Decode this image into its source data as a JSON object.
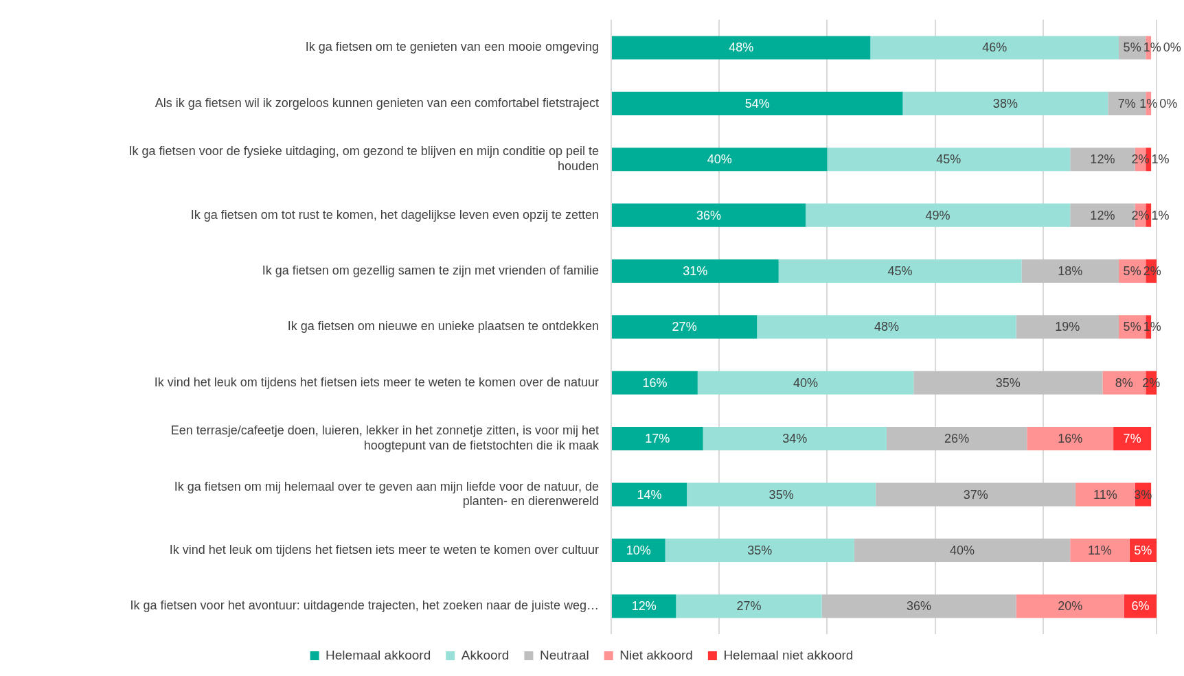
{
  "chart_data": {
    "type": "bar",
    "orientation": "horizontal",
    "stacked": true,
    "categories": [
      "Ik ga fietsen om te genieten van een mooie omgeving",
      "Als ik ga fietsen wil ik zorgeloos kunnen genieten van een comfortabel fietstraject",
      "Ik ga fietsen voor de fysieke uitdaging, om gezond te blijven en mijn conditie op peil te houden",
      "Ik ga fietsen om tot rust te komen, het dagelijkse leven even opzij te zetten",
      "Ik ga fietsen om gezellig samen te zijn met vrienden of familie",
      "Ik ga fietsen om nieuwe en unieke plaatsen te ontdekken",
      "Ik vind het leuk om tijdens het fietsen iets meer te weten te komen over de natuur",
      "Een terrasje/cafeetje doen, luieren, lekker in het zonnetje zitten, is voor mij het hoogtepunt van de fietstochten die ik maak",
      "Ik ga fietsen om mij helemaal over te geven aan mijn liefde voor de natuur, de planten- en dierenwereld",
      "Ik vind het leuk om tijdens het fietsen iets meer te weten te komen over cultuur",
      "Ik ga fietsen voor het avontuur: uitdagende trajecten, het zoeken naar de juiste weg…"
    ],
    "series": [
      {
        "name": "Helemaal akkoord",
        "color": "#00ae98",
        "values": [
          48,
          54,
          40,
          36,
          31,
          27,
          16,
          17,
          14,
          10,
          12
        ],
        "value_labels": [
          "48%",
          "54%",
          "40%",
          "36%",
          "31%",
          "27%",
          "16%",
          "17%",
          "14%",
          "10%",
          "12%"
        ]
      },
      {
        "name": "Akkoord",
        "color": "#99e0d8",
        "values": [
          46,
          38,
          45,
          49,
          45,
          48,
          40,
          34,
          35,
          35,
          27
        ],
        "value_labels": [
          "46%",
          "38%",
          "45%",
          "49%",
          "45%",
          "48%",
          "40%",
          "34%",
          "35%",
          "35%",
          "27%"
        ]
      },
      {
        "name": "Neutraal",
        "color": "#bfbfbf",
        "values": [
          5,
          7,
          12,
          12,
          18,
          19,
          35,
          26,
          37,
          40,
          36
        ],
        "value_labels": [
          "5%",
          "7%",
          "12%",
          "12%",
          "18%",
          "19%",
          "35%",
          "26%",
          "37%",
          "40%",
          "36%"
        ]
      },
      {
        "name": "Niet akkoord",
        "color": "#ff9292",
        "values": [
          1,
          1,
          2,
          2,
          5,
          5,
          8,
          16,
          11,
          11,
          20
        ],
        "value_labels": [
          "1%",
          "1%",
          "2%",
          "2%",
          "5%",
          "5%",
          "8%",
          "16%",
          "11%",
          "11%",
          "20%"
        ]
      },
      {
        "name": "Helemaal niet akkoord",
        "color": "#ff3333",
        "values": [
          0,
          0,
          1,
          1,
          2,
          1,
          2,
          7,
          3,
          5,
          6
        ],
        "value_labels": [
          "0%",
          "0%",
          "1%",
          "1%",
          "2%",
          "1%",
          "2%",
          "7%",
          "3%",
          "5%",
          "6%"
        ]
      }
    ],
    "tick_labels": "y",
    "grid": "x",
    "legend": "bottom"
  }
}
